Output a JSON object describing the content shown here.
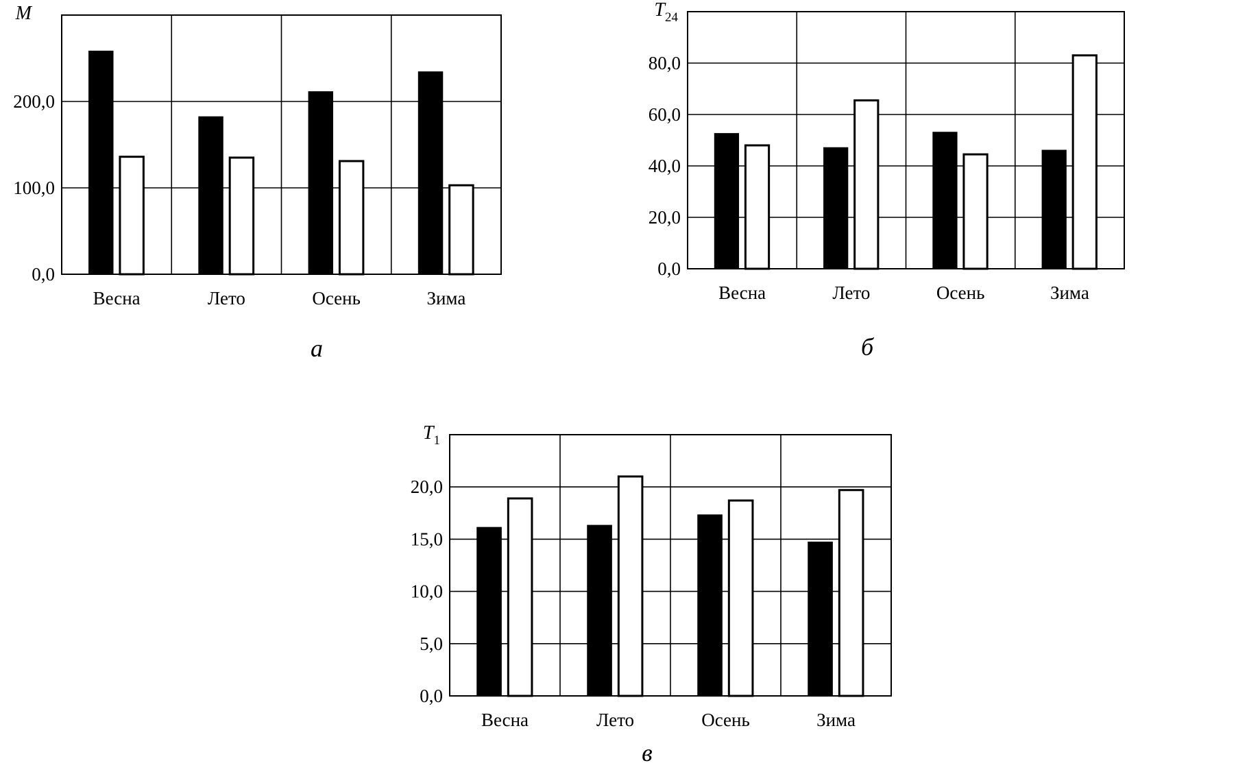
{
  "chart_data": [
    {
      "id": "a",
      "type": "bar",
      "panel_label": "а",
      "ylabel": "M",
      "ylabel_sub": "",
      "categories": [
        "Весна",
        "Лето",
        "Осень",
        "Зима"
      ],
      "series": [
        {
          "name": "dark",
          "color": "#000000",
          "values": [
            258,
            182,
            211,
            234
          ]
        },
        {
          "name": "light",
          "color": "#ffffff",
          "values": [
            136,
            135,
            131,
            103
          ]
        }
      ],
      "ylim": [
        0,
        300
      ],
      "gridlines": [
        0,
        100,
        200,
        300
      ],
      "yticks": [
        0,
        100,
        200
      ],
      "ytick_labels": [
        "0,0",
        "100,0",
        "200,0"
      ],
      "grid": true
    },
    {
      "id": "b",
      "type": "bar",
      "panel_label": "б",
      "ylabel": "T",
      "ylabel_sub": "24",
      "categories": [
        "Весна",
        "Лето",
        "Осень",
        "Зима"
      ],
      "series": [
        {
          "name": "dark",
          "color": "#000000",
          "values": [
            52.5,
            47,
            53,
            46
          ]
        },
        {
          "name": "light",
          "color": "#ffffff",
          "values": [
            48,
            65.5,
            44.5,
            83
          ]
        }
      ],
      "ylim": [
        0,
        100
      ],
      "gridlines": [
        0,
        20,
        40,
        60,
        80,
        100
      ],
      "yticks": [
        0,
        20,
        40,
        60,
        80
      ],
      "ytick_labels": [
        "0,0",
        "20,0",
        "40,0",
        "60,0",
        "80,0"
      ],
      "grid": true
    },
    {
      "id": "c",
      "type": "bar",
      "panel_label": "в",
      "ylabel": "T",
      "ylabel_sub": "1",
      "categories": [
        "Весна",
        "Лето",
        "Осень",
        "Зима"
      ],
      "series": [
        {
          "name": "dark",
          "color": "#000000",
          "values": [
            16.1,
            16.3,
            17.3,
            14.7
          ]
        },
        {
          "name": "light",
          "color": "#ffffff",
          "values": [
            18.9,
            21,
            18.7,
            19.7
          ]
        }
      ],
      "ylim": [
        0,
        25
      ],
      "gridlines": [
        0,
        5,
        10,
        15,
        20,
        25
      ],
      "yticks": [
        0,
        5,
        10,
        15,
        20
      ],
      "ytick_labels": [
        "0,0",
        "5,0",
        "10,0",
        "15,0",
        "20,0"
      ],
      "grid": true
    }
  ]
}
